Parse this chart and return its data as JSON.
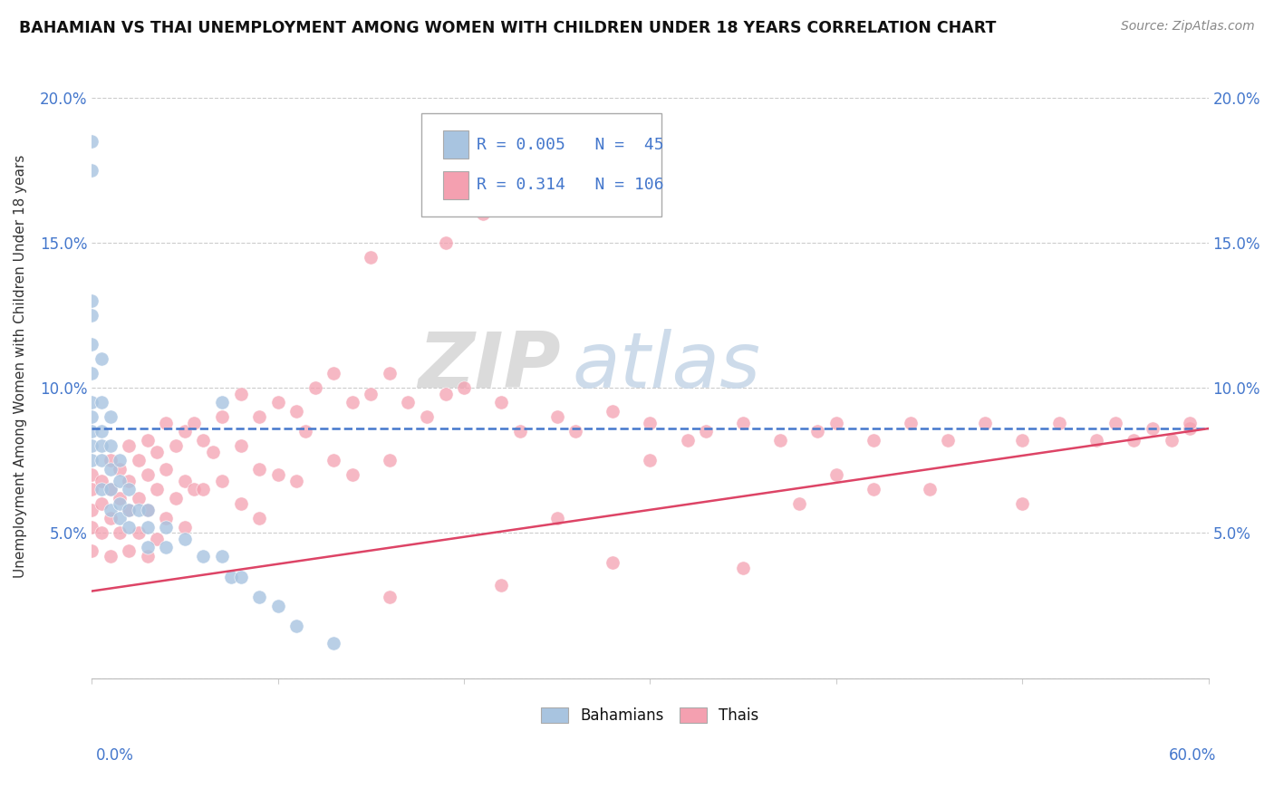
{
  "title": "BAHAMIAN VS THAI UNEMPLOYMENT AMONG WOMEN WITH CHILDREN UNDER 18 YEARS CORRELATION CHART",
  "source": "Source: ZipAtlas.com",
  "ylabel": "Unemployment Among Women with Children Under 18 years",
  "xlim": [
    0.0,
    0.6
  ],
  "ylim": [
    0.0,
    0.215
  ],
  "yticks": [
    0.0,
    0.05,
    0.1,
    0.15,
    0.2
  ],
  "ytick_labels_left": [
    "",
    "5.0%",
    "10.0%",
    "15.0%",
    "20.0%"
  ],
  "ytick_labels_right": [
    "",
    "5.0%",
    "10.0%",
    "15.0%",
    "20.0%"
  ],
  "bahamian_R": 0.005,
  "bahamian_N": 45,
  "thai_R": 0.314,
  "thai_N": 106,
  "color_bahamian": "#a8c4e0",
  "color_thai": "#f4a0b0",
  "color_bahamian_line": "#4477cc",
  "color_thai_line": "#dd4466",
  "bah_line_start_y": 0.086,
  "bah_line_end_y": 0.086,
  "thai_line_start_y": 0.03,
  "thai_line_end_y": 0.086,
  "bahamian_scatter_x": [
    0.0,
    0.0,
    0.0,
    0.0,
    0.0,
    0.0,
    0.0,
    0.0,
    0.0,
    0.0,
    0.0,
    0.005,
    0.005,
    0.005,
    0.005,
    0.005,
    0.005,
    0.01,
    0.01,
    0.01,
    0.01,
    0.01,
    0.015,
    0.015,
    0.015,
    0.015,
    0.02,
    0.02,
    0.02,
    0.025,
    0.03,
    0.03,
    0.03,
    0.04,
    0.04,
    0.05,
    0.06,
    0.07,
    0.075,
    0.08,
    0.09,
    0.1,
    0.11,
    0.13,
    0.07
  ],
  "bahamian_scatter_y": [
    0.185,
    0.175,
    0.13,
    0.125,
    0.115,
    0.105,
    0.095,
    0.09,
    0.085,
    0.08,
    0.075,
    0.11,
    0.095,
    0.085,
    0.08,
    0.075,
    0.065,
    0.09,
    0.08,
    0.072,
    0.065,
    0.058,
    0.075,
    0.068,
    0.06,
    0.055,
    0.065,
    0.058,
    0.052,
    0.058,
    0.058,
    0.052,
    0.045,
    0.052,
    0.045,
    0.048,
    0.042,
    0.042,
    0.035,
    0.035,
    0.028,
    0.025,
    0.018,
    0.012,
    0.095
  ],
  "thai_scatter_x": [
    0.0,
    0.0,
    0.0,
    0.0,
    0.0,
    0.005,
    0.005,
    0.005,
    0.01,
    0.01,
    0.01,
    0.01,
    0.015,
    0.015,
    0.015,
    0.02,
    0.02,
    0.02,
    0.02,
    0.025,
    0.025,
    0.025,
    0.03,
    0.03,
    0.03,
    0.03,
    0.035,
    0.035,
    0.035,
    0.04,
    0.04,
    0.04,
    0.045,
    0.045,
    0.05,
    0.05,
    0.05,
    0.055,
    0.055,
    0.06,
    0.06,
    0.065,
    0.07,
    0.07,
    0.08,
    0.08,
    0.08,
    0.09,
    0.09,
    0.09,
    0.1,
    0.1,
    0.11,
    0.11,
    0.115,
    0.12,
    0.13,
    0.13,
    0.14,
    0.14,
    0.15,
    0.16,
    0.16,
    0.17,
    0.18,
    0.19,
    0.2,
    0.22,
    0.23,
    0.25,
    0.26,
    0.28,
    0.3,
    0.32,
    0.33,
    0.35,
    0.37,
    0.39,
    0.4,
    0.42,
    0.44,
    0.46,
    0.48,
    0.5,
    0.52,
    0.54,
    0.55,
    0.56,
    0.57,
    0.58,
    0.59,
    0.59,
    0.15,
    0.21,
    0.19,
    0.3,
    0.25,
    0.4,
    0.45,
    0.5,
    0.42,
    0.38,
    0.28,
    0.35,
    0.22,
    0.16
  ],
  "thai_scatter_y": [
    0.07,
    0.065,
    0.058,
    0.052,
    0.044,
    0.068,
    0.06,
    0.05,
    0.075,
    0.065,
    0.055,
    0.042,
    0.072,
    0.062,
    0.05,
    0.08,
    0.068,
    0.058,
    0.044,
    0.075,
    0.062,
    0.05,
    0.082,
    0.07,
    0.058,
    0.042,
    0.078,
    0.065,
    0.048,
    0.088,
    0.072,
    0.055,
    0.08,
    0.062,
    0.085,
    0.068,
    0.052,
    0.088,
    0.065,
    0.082,
    0.065,
    0.078,
    0.09,
    0.068,
    0.098,
    0.08,
    0.06,
    0.09,
    0.072,
    0.055,
    0.095,
    0.07,
    0.092,
    0.068,
    0.085,
    0.1,
    0.105,
    0.075,
    0.095,
    0.07,
    0.098,
    0.105,
    0.075,
    0.095,
    0.09,
    0.098,
    0.1,
    0.095,
    0.085,
    0.09,
    0.085,
    0.092,
    0.088,
    0.082,
    0.085,
    0.088,
    0.082,
    0.085,
    0.088,
    0.082,
    0.088,
    0.082,
    0.088,
    0.082,
    0.088,
    0.082,
    0.088,
    0.082,
    0.086,
    0.082,
    0.086,
    0.088,
    0.145,
    0.16,
    0.15,
    0.075,
    0.055,
    0.07,
    0.065,
    0.06,
    0.065,
    0.06,
    0.04,
    0.038,
    0.032,
    0.028
  ]
}
